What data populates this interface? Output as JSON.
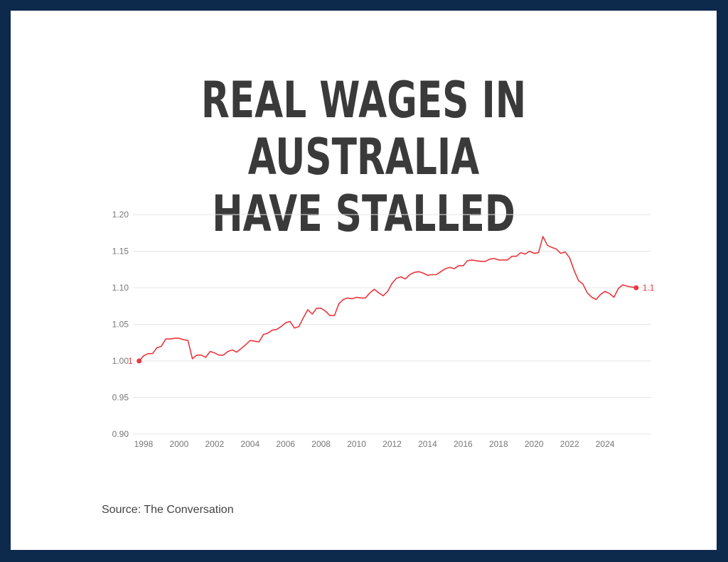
{
  "title_lines": [
    "REAL WAGES IN AUSTRALIA",
    "HAVE STALLED"
  ],
  "source": "Source: The Conversation",
  "colors": {
    "line": "#e8383d",
    "grid": "#e6e6e6",
    "tick": "#777777",
    "background": "#0d2a4d"
  },
  "chart_data": {
    "type": "line",
    "title": "REAL WAGES IN AUSTRALIA HAVE STALLED",
    "xlabel": "",
    "ylabel": "",
    "ylim": [
      0.9,
      1.2
    ],
    "yticks": [
      "0.90",
      "0.95",
      "1.00",
      "1.05",
      "1.10",
      "1.15",
      "1.20"
    ],
    "xlim": [
      1997.4,
      2026.6
    ],
    "xticks": [
      "1998",
      "2000",
      "2002",
      "2004",
      "2006",
      "2008",
      "2010",
      "2012",
      "2014",
      "2016",
      "2018",
      "2020",
      "2022",
      "2024"
    ],
    "grid": true,
    "legend": "none",
    "start_label": "1",
    "end_label": "1.1",
    "series": [
      {
        "x": [
          1997.75,
          1998.0,
          1998.25,
          1998.5,
          1998.75,
          1999.0,
          1999.25,
          1999.5,
          1999.75,
          2000.0,
          2000.25,
          2000.5,
          2000.75,
          2001.0,
          2001.25,
          2001.5,
          2001.75,
          2002.0,
          2002.25,
          2002.5,
          2002.75,
          2003.0,
          2003.25,
          2003.5,
          2003.75,
          2004.0,
          2004.25,
          2004.5,
          2004.75,
          2005.0,
          2005.25,
          2005.5,
          2005.75,
          2006.0,
          2006.25,
          2006.5,
          2006.75,
          2007.0,
          2007.25,
          2007.5,
          2007.75,
          2008.0,
          2008.25,
          2008.5,
          2008.75,
          2009.0,
          2009.25,
          2009.5,
          2009.75,
          2010.0,
          2010.25,
          2010.5,
          2010.75,
          2011.0,
          2011.25,
          2011.5,
          2011.75,
          2012.0,
          2012.25,
          2012.5,
          2012.75,
          2013.0,
          2013.25,
          2013.5,
          2013.75,
          2014.0,
          2014.25,
          2014.5,
          2014.75,
          2015.0,
          2015.25,
          2015.5,
          2015.75,
          2016.0,
          2016.25,
          2016.5,
          2016.75,
          2017.0,
          2017.25,
          2017.5,
          2017.75,
          2018.0,
          2018.25,
          2018.5,
          2018.75,
          2019.0,
          2019.25,
          2019.5,
          2019.75,
          2020.0,
          2020.25,
          2020.5,
          2020.75,
          2021.0,
          2021.25,
          2021.5,
          2021.75,
          2022.0,
          2022.25,
          2022.5,
          2022.75,
          2023.0,
          2023.25,
          2023.5,
          2023.75,
          2024.0,
          2024.25,
          2024.5,
          2024.75,
          2025.0,
          2025.25,
          2025.5,
          2025.75
        ],
        "values": [
          1.0,
          1.007,
          1.01,
          1.01,
          1.018,
          1.02,
          1.03,
          1.03,
          1.031,
          1.031,
          1.029,
          1.028,
          1.003,
          1.008,
          1.008,
          1.005,
          1.013,
          1.011,
          1.008,
          1.008,
          1.013,
          1.015,
          1.012,
          1.017,
          1.022,
          1.028,
          1.027,
          1.026,
          1.036,
          1.038,
          1.042,
          1.043,
          1.047,
          1.052,
          1.054,
          1.045,
          1.047,
          1.059,
          1.07,
          1.064,
          1.072,
          1.072,
          1.068,
          1.062,
          1.062,
          1.078,
          1.084,
          1.086,
          1.085,
          1.087,
          1.086,
          1.086,
          1.093,
          1.098,
          1.093,
          1.089,
          1.095,
          1.106,
          1.113,
          1.115,
          1.112,
          1.118,
          1.121,
          1.122,
          1.12,
          1.117,
          1.118,
          1.118,
          1.122,
          1.126,
          1.128,
          1.126,
          1.13,
          1.13,
          1.137,
          1.138,
          1.137,
          1.136,
          1.136,
          1.139,
          1.14,
          1.138,
          1.138,
          1.138,
          1.143,
          1.143,
          1.148,
          1.146,
          1.15,
          1.147,
          1.148,
          1.17,
          1.158,
          1.155,
          1.153,
          1.147,
          1.149,
          1.141,
          1.124,
          1.11,
          1.105,
          1.093,
          1.087,
          1.084,
          1.091,
          1.095,
          1.092,
          1.087,
          1.099,
          1.104,
          1.102,
          1.101,
          1.1
        ]
      }
    ]
  }
}
